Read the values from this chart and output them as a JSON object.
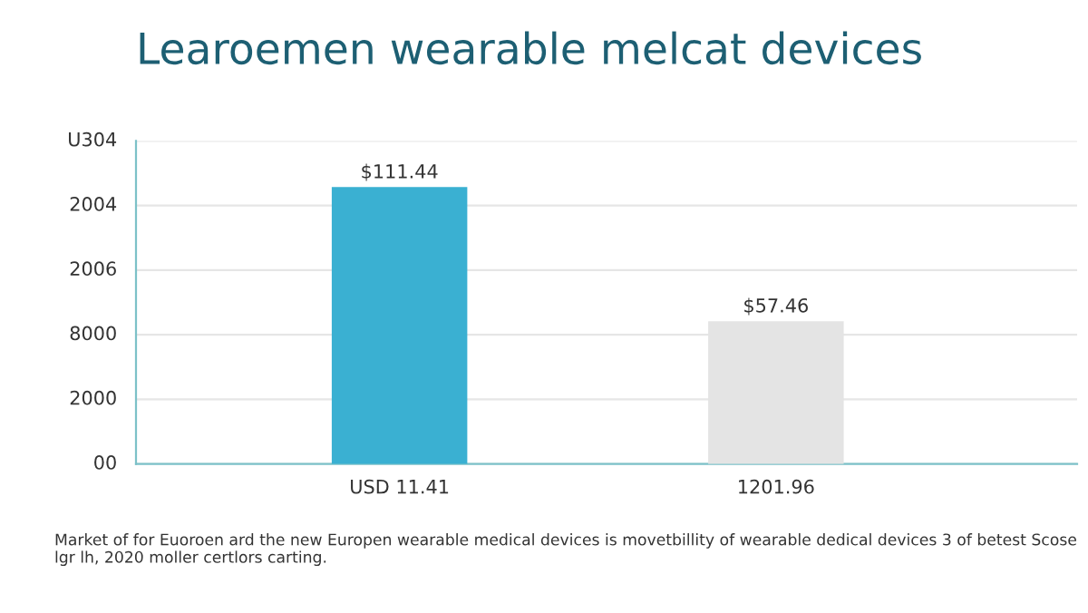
{
  "chart_data": {
    "type": "bar",
    "title": "Learoemen wearable melcat devices",
    "categories": [
      "USD 11.41",
      "1201.96"
    ],
    "series": [
      {
        "values": [
          111.44,
          57.46
        ],
        "colors": [
          "#3ab0d2",
          "#e4e4e4"
        ],
        "value_labels": [
          "$111.44",
          "$57.46"
        ]
      }
    ],
    "grid": "y",
    "ylim": [
      0,
      130
    ],
    "tick_labels": "x",
    "legend": false,
    "annotations": [
      "U304",
      "2004",
      "2006",
      "8000",
      "2000",
      "00",
      "Market of for Euoroen ard the new Europen wearable medical devices is movetbillity of wearable dedical devices 3 of betest Scose lgr lh, 2020 moller certlors carting."
    ]
  }
}
